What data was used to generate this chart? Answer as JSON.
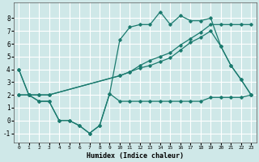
{
  "xlabel": "Humidex (Indice chaleur)",
  "background_color": "#cfe8e8",
  "grid_color": "#ffffff",
  "line_color": "#1a7a6e",
  "xlim": [
    -0.5,
    23.5
  ],
  "ylim": [
    -1.7,
    9.2
  ],
  "yticks": [
    -1,
    0,
    1,
    2,
    3,
    4,
    5,
    6,
    7,
    8
  ],
  "xticks": [
    0,
    1,
    2,
    3,
    4,
    5,
    6,
    7,
    8,
    9,
    10,
    11,
    12,
    13,
    14,
    15,
    16,
    17,
    18,
    19,
    20,
    21,
    22,
    23
  ],
  "line1_x": [
    0,
    1,
    2,
    3,
    4,
    5,
    6,
    7,
    8,
    9,
    10,
    11,
    12,
    13,
    14,
    15,
    16,
    17,
    18,
    19,
    20,
    21,
    22,
    23
  ],
  "line1_y": [
    4.0,
    2.0,
    1.5,
    1.5,
    0.0,
    0.0,
    -0.4,
    -1.0,
    -0.4,
    2.1,
    1.5,
    1.5,
    1.5,
    1.5,
    1.5,
    1.5,
    1.5,
    1.5,
    1.5,
    1.8,
    1.8,
    1.8,
    1.8,
    2.0
  ],
  "line2_x": [
    0,
    1,
    2,
    3,
    10,
    11,
    12,
    13,
    14,
    15,
    16,
    17,
    18,
    19,
    20,
    21,
    22,
    23
  ],
  "line2_y": [
    2.0,
    2.0,
    2.0,
    2.0,
    3.5,
    3.8,
    4.1,
    4.3,
    4.6,
    4.9,
    5.5,
    6.1,
    6.5,
    7.0,
    5.8,
    4.3,
    3.2,
    2.0
  ],
  "line3_x": [
    0,
    1,
    2,
    3,
    10,
    11,
    12,
    13,
    14,
    15,
    16,
    17,
    18,
    19,
    20,
    21,
    22,
    23
  ],
  "line3_y": [
    2.0,
    2.0,
    2.0,
    2.0,
    3.5,
    3.8,
    4.3,
    4.7,
    5.0,
    5.3,
    5.9,
    6.4,
    6.9,
    7.5,
    7.5,
    7.5,
    7.5,
    7.5
  ],
  "line_zigzag_x": [
    0,
    1,
    2,
    3,
    4,
    5,
    6,
    7,
    8,
    9,
    10,
    11,
    12,
    13,
    14,
    15,
    16,
    17,
    18,
    19,
    20,
    21,
    22,
    23
  ],
  "line_zigzag_y": [
    4.0,
    2.0,
    1.5,
    1.5,
    0.0,
    0.0,
    -0.4,
    -1.0,
    -0.4,
    2.1,
    6.3,
    7.3,
    7.5,
    7.5,
    8.5,
    7.5,
    8.2,
    7.8,
    7.8,
    8.0,
    5.8,
    4.3,
    3.2,
    2.0
  ]
}
